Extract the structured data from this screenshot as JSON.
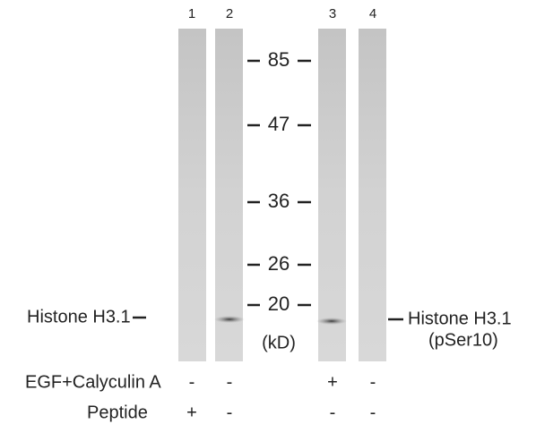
{
  "lanes": [
    "1",
    "2",
    "3",
    "4"
  ],
  "markers": [
    "85",
    "47",
    "36",
    "26",
    "20"
  ],
  "unit": "(kD)",
  "left_label": "Histone H3.1",
  "right_label": {
    "line1": "Histone H3.1",
    "line2": "(pSer10)"
  },
  "treatments": [
    {
      "name": "EGF+Calyculin A",
      "marks": [
        "-",
        "-",
        "+",
        "-"
      ]
    },
    {
      "name": "Peptide",
      "marks": [
        "+",
        "-",
        "-",
        "-"
      ]
    }
  ]
}
